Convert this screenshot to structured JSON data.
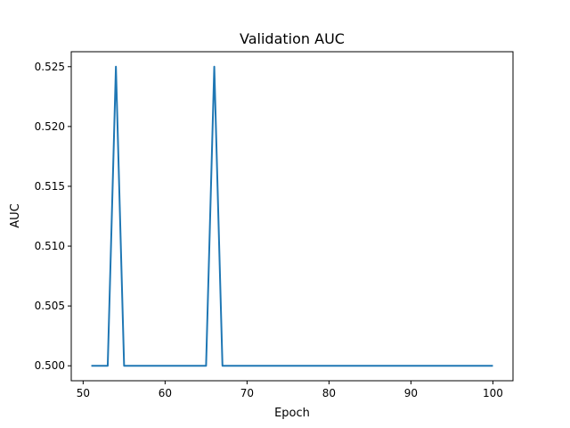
{
  "chart_data": {
    "type": "line",
    "title": "Validation AUC",
    "xlabel": "Epoch",
    "ylabel": "AUC",
    "xlim": [
      48.55,
      102.45
    ],
    "ylim": [
      0.49875,
      0.52625
    ],
    "xticks": [
      50,
      60,
      70,
      80,
      90,
      100
    ],
    "yticks": [
      0.5,
      0.505,
      0.51,
      0.515,
      0.52,
      0.525
    ],
    "ytick_labels": [
      "0.500",
      "0.505",
      "0.510",
      "0.515",
      "0.520",
      "0.525"
    ],
    "xtick_labels": [
      "50",
      "60",
      "70",
      "80",
      "90",
      "100"
    ],
    "grid": false,
    "series": [
      {
        "color": "#1f77b4",
        "x": [
          51,
          52,
          53,
          54,
          55,
          56,
          57,
          58,
          59,
          60,
          61,
          62,
          63,
          64,
          65,
          66,
          67,
          68,
          69,
          70,
          71,
          72,
          73,
          74,
          75,
          76,
          77,
          78,
          79,
          80,
          81,
          82,
          83,
          84,
          85,
          86,
          87,
          88,
          89,
          90,
          91,
          92,
          93,
          94,
          95,
          96,
          97,
          98,
          99,
          100
        ],
        "y": [
          0.5,
          0.5,
          0.5,
          0.525,
          0.5,
          0.5,
          0.5,
          0.5,
          0.5,
          0.5,
          0.5,
          0.5,
          0.5,
          0.5,
          0.5,
          0.525,
          0.5,
          0.5,
          0.5,
          0.5,
          0.5,
          0.5,
          0.5,
          0.5,
          0.5,
          0.5,
          0.5,
          0.5,
          0.5,
          0.5,
          0.5,
          0.5,
          0.5,
          0.5,
          0.5,
          0.5,
          0.5,
          0.5,
          0.5,
          0.5,
          0.5,
          0.5,
          0.5,
          0.5,
          0.5,
          0.5,
          0.5,
          0.5,
          0.5,
          0.5
        ]
      }
    ]
  }
}
